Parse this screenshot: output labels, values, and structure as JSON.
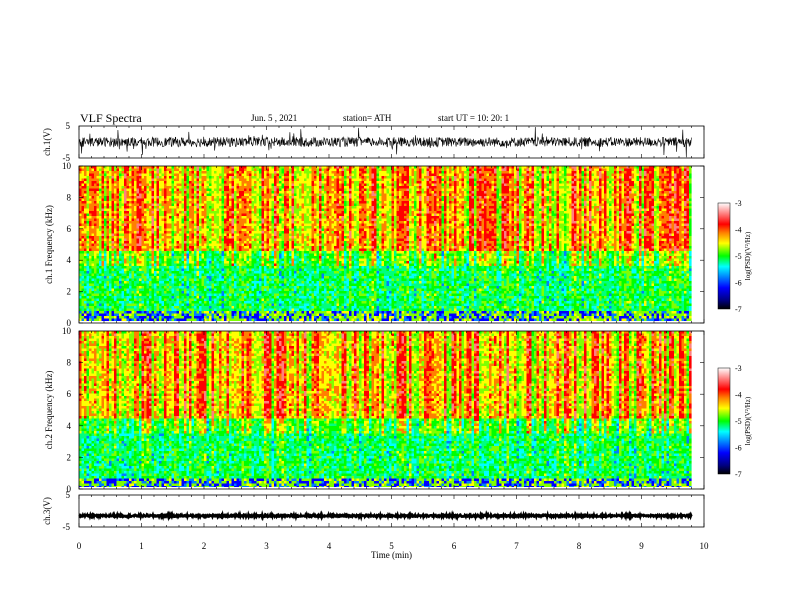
{
  "header": {
    "title": "VLF  Spectra",
    "date": "Jun. 5  , 2021",
    "station": "station= ATH",
    "start": "start  UT  =   10: 20: 1"
  },
  "colors": {
    "colormap": [
      "#000000",
      "#00007f",
      "#0000ff",
      "#007fff",
      "#00ffff",
      "#00ff7f",
      "#00ff00",
      "#7fff00",
      "#ffff00",
      "#ff7f00",
      "#ff0000",
      "#ff7f7f",
      "#ffffff"
    ],
    "trace": "#000000"
  },
  "chart_data": [
    {
      "type": "line",
      "name": "ch1-waveform",
      "ylabel": "ch.1(V)",
      "ylim": [
        -5,
        5
      ],
      "y_ticks": [
        "5",
        "-5"
      ],
      "x": [
        0,
        10
      ],
      "approx_level": 0,
      "approx_amplitude": 1.5
    },
    {
      "type": "heatmap",
      "name": "ch1-spectrogram",
      "ylabel": "ch.1  Frequency  (kHz)",
      "ylim": [
        0,
        10
      ],
      "y_ticks": [
        "0",
        "2",
        "4",
        "6",
        "8",
        "10"
      ],
      "xlim": [
        0,
        10
      ],
      "data_end_min": 9.8,
      "colorbar": {
        "label": "log(PSD)(V²/Hz)",
        "range": [
          -7,
          -3
        ],
        "ticks": [
          "-3",
          "-4",
          "-5",
          "-6",
          "-7"
        ]
      },
      "bands_khz_approx": {
        "low_power_below": 4,
        "high_power_above": 4.5
      }
    },
    {
      "type": "heatmap",
      "name": "ch2-spectrogram",
      "ylabel": "ch.2  Frequency  (kHz)",
      "ylim": [
        0,
        10
      ],
      "y_ticks": [
        "0",
        "2",
        "4",
        "6",
        "8",
        "10"
      ],
      "xlim": [
        0,
        10
      ],
      "data_end_min": 9.8,
      "colorbar": {
        "label": "log(PSD)(V²/Hz)",
        "range": [
          -7,
          -3
        ],
        "ticks": [
          "-3",
          "-4",
          "-5",
          "-6",
          "-7"
        ]
      },
      "bands_khz_approx": {
        "low_power_below": 4,
        "high_power_above": 4.5
      }
    },
    {
      "type": "line",
      "name": "ch3-waveform",
      "ylabel": "ch.3(V)",
      "ylim": [
        -5,
        5
      ],
      "y_ticks": [
        "5",
        "-5"
      ],
      "x": [
        0,
        10
      ],
      "approx_level": -1.5,
      "approx_amplitude": 0.3
    }
  ],
  "x_axis": {
    "label": "Time  (min)",
    "ticks": [
      "0",
      "1",
      "2",
      "3",
      "4",
      "5",
      "6",
      "7",
      "8",
      "9",
      "10"
    ],
    "range": [
      0,
      10
    ]
  }
}
